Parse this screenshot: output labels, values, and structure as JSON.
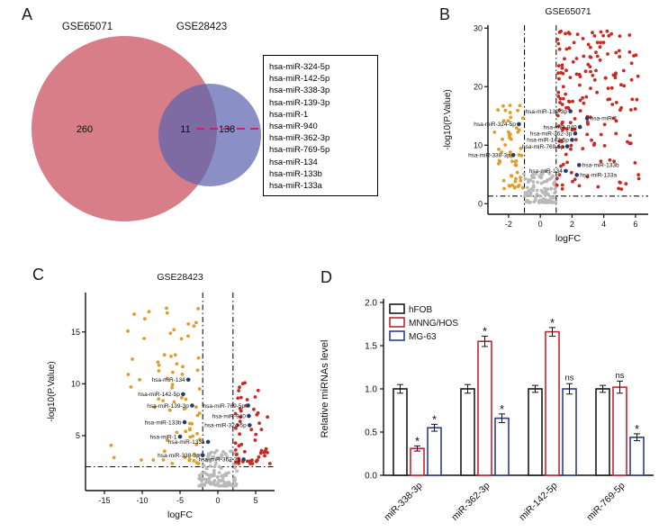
{
  "panels": {
    "a": "A",
    "b": "B",
    "c": "C",
    "d": "D"
  },
  "venn": {
    "left_label": "GSE65071",
    "right_label": "GSE28423",
    "left_count": "260",
    "overlap_count": "11",
    "right_count": "138",
    "overlap_mirnas": [
      "hsa-miR-324-5p",
      "hsa-miR-142-5p",
      "hsa-miR-338-3p",
      "hsa-miR-139-3p",
      "hsa-miR-1",
      "hsa-miR-940",
      "hsa-miR-362-3p",
      "hsa-miR-769-5p",
      "hsa-miR-134",
      "hsa-miR-133b",
      "hsa-miR-133a"
    ],
    "colors": {
      "left": "#d4737f",
      "right": "#5d64ae",
      "connector": "#c3266c"
    }
  },
  "chart_data": [
    {
      "type": "scatter",
      "subtype": "volcano",
      "title": "GSE65071",
      "xlabel": "logFC",
      "ylabel": "-log10(P.Value)",
      "xlim": [
        -3.3,
        6.8
      ],
      "ylim": [
        -1.8,
        30.5
      ],
      "xticks": [
        -2,
        0,
        2,
        4,
        6
      ],
      "yticks": [
        0,
        10,
        20,
        30
      ],
      "threshold_x": [
        -1,
        1
      ],
      "threshold_y": 1.3,
      "point_colors": {
        "up": "#c92a21",
        "down": "#e29d26",
        "ns": "#b9b9b9",
        "highlight": "#223c6e"
      },
      "highlighted_points": [
        {
          "name": "hsa-miR-324-5p",
          "x": -1.35,
          "y": 13.6,
          "side": "L"
        },
        {
          "name": "hsa-miR-338-3p",
          "x": -1.7,
          "y": 8.3,
          "side": "L"
        },
        {
          "name": "hsa-miR-139-3p",
          "x": 1.9,
          "y": 15.8,
          "side": "L"
        },
        {
          "name": "hsa-miR-1",
          "x": 2.95,
          "y": 14.6,
          "side": "R"
        },
        {
          "name": "hsa-miR-940",
          "x": 2.5,
          "y": 13.1,
          "side": "L"
        },
        {
          "name": "hsa-miR-362-3p",
          "x": 2.2,
          "y": 12.0,
          "side": "L"
        },
        {
          "name": "hsa-miR-142-5p",
          "x": 2.0,
          "y": 10.9,
          "side": "L"
        },
        {
          "name": "hsa-miR-769-5p",
          "x": 1.7,
          "y": 9.8,
          "side": "L"
        },
        {
          "name": "hsa-miR-134",
          "x": 1.6,
          "y": 5.6,
          "side": "L"
        },
        {
          "name": "hsa-miR-133b",
          "x": 2.45,
          "y": 6.6,
          "side": "R"
        },
        {
          "name": "hsa-miR-133a",
          "x": 2.3,
          "y": 4.9,
          "side": "R"
        }
      ],
      "clouds": [
        {
          "color": "ns",
          "n": 105,
          "x": [
            -1.05,
            1.05
          ],
          "xbias": 1.0,
          "y": [
            0.2,
            5.8
          ],
          "ybias": 2.4,
          "seed": 9
        },
        {
          "color": "down",
          "n": 58,
          "x": [
            -2.95,
            -1.08
          ],
          "xbias": 0.5,
          "y": [
            2.4,
            16.8
          ],
          "ybias": 1.35,
          "seed": 8
        },
        {
          "color": "up",
          "n": 175,
          "x": [
            1.05,
            6.35
          ],
          "xbias": 1.55,
          "y": [
            2.4,
            29.6
          ],
          "ybias": 0.95,
          "seed": 7
        }
      ]
    },
    {
      "type": "scatter",
      "subtype": "volcano",
      "title": "GSE28423",
      "xlabel": "logFC",
      "ylabel": "-log10(P.Value)",
      "xlim": [
        -17.5,
        7.5
      ],
      "ylim": [
        -0.3,
        18.8
      ],
      "xticks": [
        -15,
        -10,
        -5,
        0,
        5
      ],
      "yticks": [
        5,
        10,
        15
      ],
      "threshold_x": [
        -2,
        2
      ],
      "threshold_y": 2,
      "point_colors": {
        "up": "#c92a21",
        "down": "#e29d26",
        "ns": "#b9b9b9",
        "highlight": "#223c6e"
      },
      "highlighted_points": [
        {
          "name": "hsa-miR-134",
          "x": -3.9,
          "y": 10.4,
          "side": "L"
        },
        {
          "name": "hsa-miR-142-5p",
          "x": -4.6,
          "y": 9.0,
          "side": "L"
        },
        {
          "name": "hsa-miR-139-3p",
          "x": -3.4,
          "y": 7.9,
          "side": "L"
        },
        {
          "name": "hsa-miR-769-5p",
          "x": 4.0,
          "y": 7.9,
          "side": "L"
        },
        {
          "name": "hsa-miR-940",
          "x": 4.1,
          "y": 6.9,
          "side": "L"
        },
        {
          "name": "hsa-miR-133b",
          "x": -4.4,
          "y": 6.3,
          "side": "L"
        },
        {
          "name": "hsa-miR-324-5p",
          "x": 4.2,
          "y": 6.0,
          "side": "L"
        },
        {
          "name": "hsa-miR-1",
          "x": -5.0,
          "y": 4.9,
          "side": "L"
        },
        {
          "name": "hsa-miR-133a",
          "x": -1.3,
          "y": 4.4,
          "side": "L"
        },
        {
          "name": "hsa-miR-338-3p",
          "x": -2.0,
          "y": 3.1,
          "side": "L"
        },
        {
          "name": "hsa-miR-362-3p",
          "x": 3.4,
          "y": 2.7,
          "side": "L"
        }
      ],
      "clouds": [
        {
          "color": "ns",
          "n": 125,
          "x": [
            -2.6,
            2.6
          ],
          "xbias": 1.0,
          "y": [
            0.15,
            3.6
          ],
          "ybias": 1.9,
          "seed": 6
        },
        {
          "color": "down",
          "n": 72,
          "x": [
            -15.6,
            -2.3
          ],
          "xbias": 0.42,
          "y": [
            2.3,
            17.3
          ],
          "ybias": 1.5,
          "seed": 4
        },
        {
          "color": "up",
          "n": 55,
          "x": [
            2.3,
            6.9
          ],
          "xbias": 1.7,
          "y": [
            2.3,
            10.2
          ],
          "ybias": 1.6,
          "seed": 5
        }
      ]
    },
    {
      "type": "bar",
      "title": "",
      "xlabel": "",
      "ylabel": "Relative miRNAs level",
      "categories": [
        "miR-338-3p",
        "miR-362-3p",
        "miR-142-5p",
        "miR-769-5p"
      ],
      "ylim": [
        0,
        2.0
      ],
      "yticks": [
        0,
        0.5,
        1,
        1.5,
        2
      ],
      "ytick_labels": [
        "0.0",
        "0.5",
        "1.0",
        "1.5",
        "2.0"
      ],
      "legend_position": "top-left",
      "series": [
        {
          "name": "hFOB",
          "color": "#1a1a1a",
          "values": [
            1.0,
            1.0,
            1.0,
            1.0
          ],
          "errors": [
            0.05,
            0.05,
            0.04,
            0.04
          ],
          "sig": [
            "",
            "",
            "",
            ""
          ]
        },
        {
          "name": "MNNG/HOS",
          "color": "#c0272d",
          "values": [
            0.31,
            1.55,
            1.66,
            1.02
          ],
          "errors": [
            0.03,
            0.06,
            0.05,
            0.07
          ],
          "sig": [
            "*",
            "*",
            "*",
            "ns"
          ]
        },
        {
          "name": "MG-63",
          "color": "#2c3f8e",
          "values": [
            0.55,
            0.66,
            1.0,
            0.44
          ],
          "errors": [
            0.04,
            0.05,
            0.06,
            0.04
          ],
          "sig": [
            "*",
            "*",
            "ns",
            "*"
          ]
        }
      ]
    }
  ]
}
